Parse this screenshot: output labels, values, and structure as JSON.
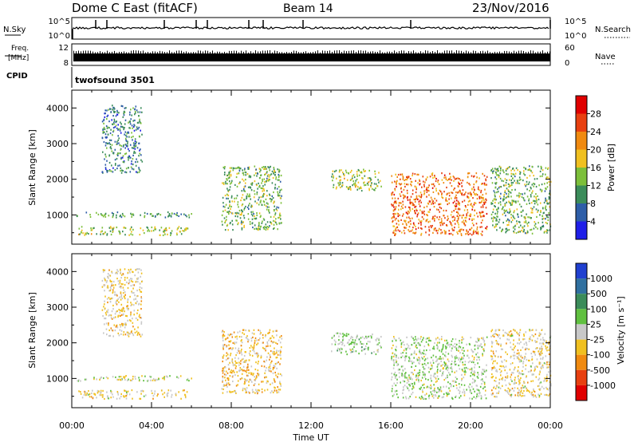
{
  "header": {
    "title": "Dome C East (fitACF)",
    "beam": "Beam 14",
    "date": "23/Nov/2016"
  },
  "strips": {
    "nsky_label": "N.Sky",
    "nsky_ticks": [
      "10^5",
      "10^0"
    ],
    "nsearch_label": "N.Search",
    "freq_label_line1": "Freq.",
    "freq_label_line2": "[MHz]",
    "freq_ticks": [
      "12",
      "8"
    ],
    "nave_label": "Nave",
    "nave_ticks": [
      "60",
      "0"
    ],
    "cpid_label": "CPID",
    "cpid_value": "twofsound 3501"
  },
  "axes": {
    "x_ticks": [
      "00:00",
      "04:00",
      "08:00",
      "12:00",
      "16:00",
      "20:00",
      "00:00"
    ],
    "x_label": "Time UT",
    "y_label": "Slant Range [km]",
    "y_ticks": [
      "1000",
      "2000",
      "3000",
      "4000"
    ]
  },
  "colorbars": {
    "power": {
      "label": "Power [dB]",
      "ticks": [
        "4",
        "8",
        "12",
        "16",
        "20",
        "24",
        "28"
      ],
      "colors": [
        "#1f1fe8",
        "#2e5ea8",
        "#3b8c5a",
        "#7cbf3a",
        "#f0c020",
        "#f08a10",
        "#e84010",
        "#e00000"
      ]
    },
    "velocity": {
      "label": "Velocity [m s⁻¹]",
      "ticks": [
        "1000",
        "500",
        "100",
        "25",
        "-25",
        "-100",
        "-500",
        "-1000"
      ],
      "colors": [
        "#2040d0",
        "#3070a0",
        "#3b8c5a",
        "#60c040",
        "#c8c8c8",
        "#f0c020",
        "#f08a10",
        "#e84010",
        "#e00000"
      ]
    }
  },
  "chart_data": [
    {
      "type": "heatmap",
      "name": "Power",
      "xlabel": "Time UT",
      "ylabel": "Slant Range [km]",
      "xlim": [
        "00:00",
        "24:00"
      ],
      "ylim": [
        180,
        4500
      ],
      "color_label": "Power [dB]",
      "color_range": [
        0,
        30
      ],
      "echo_regions": [
        {
          "t_start": 0.2,
          "t_end": 6.0,
          "r_min": 950,
          "r_max": 1100,
          "value": 10
        },
        {
          "t_start": 0.3,
          "t_end": 5.8,
          "r_min": 450,
          "r_max": 700,
          "value": 14
        },
        {
          "t_start": 1.5,
          "t_end": 3.5,
          "r_min": 2200,
          "r_max": 4100,
          "value": 8
        },
        {
          "t_start": 7.5,
          "t_end": 10.5,
          "r_min": 600,
          "r_max": 2400,
          "value": 12
        },
        {
          "t_start": 13.0,
          "t_end": 15.5,
          "r_min": 1700,
          "r_max": 2300,
          "value": 14
        },
        {
          "t_start": 16.0,
          "t_end": 20.8,
          "r_min": 450,
          "r_max": 2200,
          "value": 22
        },
        {
          "t_start": 21.0,
          "t_end": 24.0,
          "r_min": 500,
          "r_max": 2400,
          "value": 12
        }
      ]
    },
    {
      "type": "heatmap",
      "name": "Velocity",
      "xlabel": "Time UT",
      "ylabel": "Slant Range [km]",
      "xlim": [
        "00:00",
        "24:00"
      ],
      "ylim": [
        180,
        4500
      ],
      "color_label": "Velocity [m s⁻¹]",
      "color_range": [
        -1000,
        1000
      ],
      "echo_regions": [
        {
          "t_start": 0.2,
          "t_end": 6.0,
          "r_min": 950,
          "r_max": 1100,
          "value": 0
        },
        {
          "t_start": 0.3,
          "t_end": 5.8,
          "r_min": 450,
          "r_max": 700,
          "value": -120
        },
        {
          "t_start": 1.5,
          "t_end": 3.5,
          "r_min": 2200,
          "r_max": 4100,
          "value": -150
        },
        {
          "t_start": 7.5,
          "t_end": 10.5,
          "r_min": 600,
          "r_max": 2400,
          "value": -200
        },
        {
          "t_start": 13.0,
          "t_end": 15.5,
          "r_min": 1700,
          "r_max": 2300,
          "value": 120
        },
        {
          "t_start": 16.0,
          "t_end": 20.8,
          "r_min": 450,
          "r_max": 2200,
          "value": 80
        },
        {
          "t_start": 21.0,
          "t_end": 24.0,
          "r_min": 500,
          "r_max": 2400,
          "value": -120
        }
      ]
    }
  ]
}
